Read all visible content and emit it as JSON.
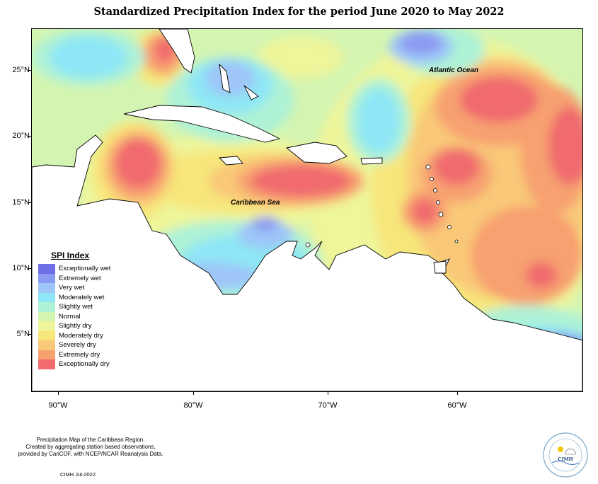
{
  "title": "Standardized Precipitation Index for the period June 2020 to May 2022",
  "map": {
    "region": "Caribbean",
    "lon_range": [
      -92,
      -50
    ],
    "lat_range": [
      1,
      28
    ],
    "lat_labels": [
      "25°N",
      "20°N",
      "15°N",
      "10°N",
      "5°N"
    ],
    "lon_labels": [
      "90°W",
      "80°W",
      "70°W",
      "60°W"
    ],
    "ocean_labels": [
      "Atlantic Ocean",
      "Caribbean Sea"
    ]
  },
  "legend": {
    "title": "SPI Index",
    "items": [
      {
        "label": "Exceptionally wet",
        "color": "#6e6ee6"
      },
      {
        "label": "Extremely wet",
        "color": "#8c9bf2"
      },
      {
        "label": "Very wet",
        "color": "#9ec6f8"
      },
      {
        "label": "Moderately wet",
        "color": "#8ee6f6"
      },
      {
        "label": "Slightly wet",
        "color": "#aef2d6"
      },
      {
        "label": "Normal",
        "color": "#d4f5b2"
      },
      {
        "label": "Slightly dry",
        "color": "#eef59a"
      },
      {
        "label": "Moderately dry",
        "color": "#f7e67a"
      },
      {
        "label": "Severely dry",
        "color": "#f9c878"
      },
      {
        "label": "Extremely dry",
        "color": "#f7a070"
      },
      {
        "label": "Exceptionally dry",
        "color": "#f06a6e"
      }
    ]
  },
  "footnote": {
    "lines": [
      "Precipitation Map of the Caribbean Region.",
      "Created by aggregating station based observations,",
      "provided by CariCOF, with NCEP/NCAR Reanalysis Data."
    ],
    "credit": "CIMH Jul-2022"
  },
  "logo": {
    "text": "CIMH",
    "icon": "sun-cloud-icon"
  }
}
